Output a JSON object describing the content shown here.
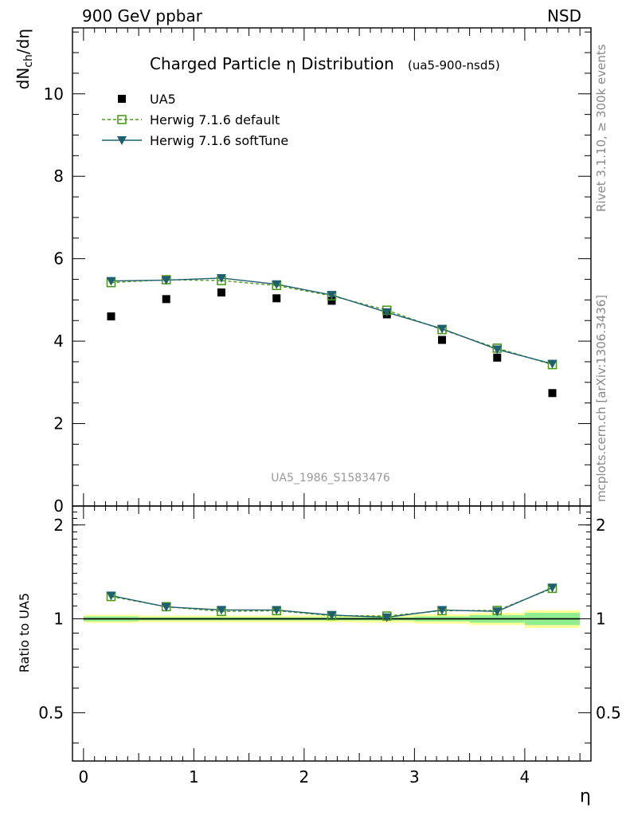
{
  "header": {
    "left": "900 GeV ppbar",
    "right": "NSD"
  },
  "side_labels": {
    "top": "Rivet 3.1.10, ≥ 300k events",
    "bottom": "mcplots.cern.ch [arXiv:1306.3436]"
  },
  "chart_data": {
    "type": "scatter",
    "title": "Charged Particle η Distribution",
    "subtitle": "(ua5-900-nsd5)",
    "watermark": "UA5_1986_S1583476",
    "ylabel": "dN",
    "ylabel_sub": "ch",
    "ylabel_suffix": "/dη",
    "ratio_ylabel": "Ratio to UA5",
    "xlabel": "η",
    "xlim": [
      -0.1,
      4.6
    ],
    "ylim": [
      0,
      11.6
    ],
    "ratio_ylim": [
      0.35,
      2.3
    ],
    "x_ticks": [
      "0",
      "1",
      "2",
      "3",
      "4"
    ],
    "y_ticks": [
      "0",
      "2",
      "4",
      "6",
      "8",
      "10"
    ],
    "ratio_ticks": [
      "0.5",
      "1",
      "2"
    ],
    "x": [
      0.25,
      0.75,
      1.25,
      1.75,
      2.25,
      2.75,
      3.25,
      3.75,
      4.25
    ],
    "series": [
      {
        "name": "UA5",
        "style": "data",
        "color": "#000000",
        "values": [
          4.6,
          5.02,
          5.18,
          5.04,
          4.98,
          4.65,
          4.03,
          3.6,
          2.74
        ]
      },
      {
        "name": "Herwig 7.1.6 default",
        "style": "open-square-dashed",
        "color": "#4c9a1c",
        "values": [
          5.42,
          5.49,
          5.47,
          5.35,
          5.1,
          4.75,
          4.28,
          3.83,
          3.43
        ]
      },
      {
        "name": "Herwig 7.1.6 softTune",
        "style": "triangle-solid",
        "color": "#1f5f6f",
        "values": [
          5.46,
          5.48,
          5.53,
          5.38,
          5.12,
          4.7,
          4.3,
          3.8,
          3.45
        ]
      }
    ],
    "ratio_series": [
      {
        "name": "Herwig 7.1.6 default",
        "values": [
          1.179,
          1.094,
          1.056,
          1.062,
          1.024,
          1.021,
          1.062,
          1.064,
          1.252
        ]
      },
      {
        "name": "Herwig 7.1.6 softTune",
        "values": [
          1.187,
          1.092,
          1.068,
          1.067,
          1.028,
          1.011,
          1.067,
          1.056,
          1.259
        ]
      }
    ],
    "uncertainty_band": {
      "bins": [
        [
          0,
          0.5
        ],
        [
          0.5,
          1.0
        ],
        [
          1.0,
          1.5
        ],
        [
          1.5,
          2.0
        ],
        [
          2.0,
          2.5
        ],
        [
          2.5,
          3.0
        ],
        [
          3.0,
          3.5
        ],
        [
          3.5,
          4.0
        ],
        [
          4.0,
          4.5
        ]
      ],
      "stat": [
        0.018,
        0.012,
        0.012,
        0.012,
        0.012,
        0.012,
        0.018,
        0.028,
        0.045
      ],
      "total": [
        0.03,
        0.025,
        0.025,
        0.025,
        0.025,
        0.028,
        0.035,
        0.045,
        0.065
      ],
      "stat_color": "#90ee90",
      "total_color": "#ffff99"
    }
  }
}
